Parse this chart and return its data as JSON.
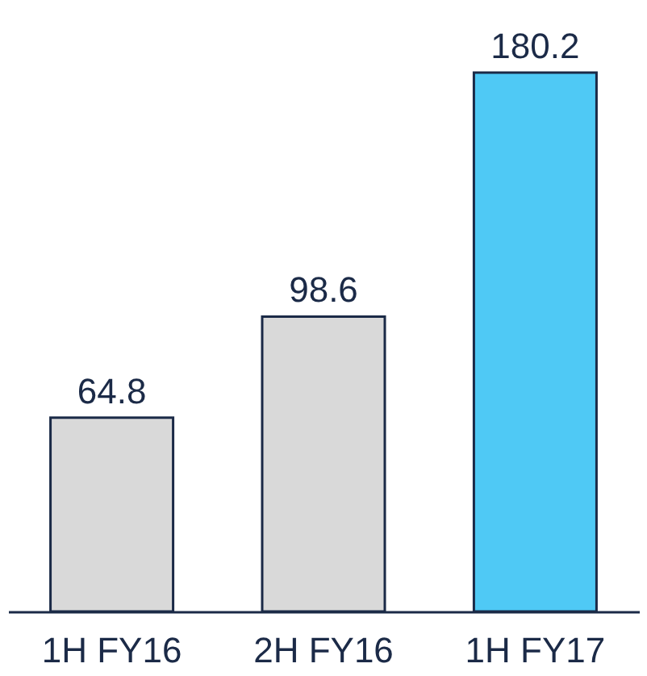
{
  "chart_data": {
    "type": "bar",
    "categories": [
      "1H FY16",
      "2H FY16",
      "1H FY17"
    ],
    "values": [
      64.8,
      98.6,
      180.2
    ],
    "colors": [
      "#d9d9d9",
      "#d9d9d9",
      "#4fc9f5"
    ],
    "data_labels": true
  }
}
